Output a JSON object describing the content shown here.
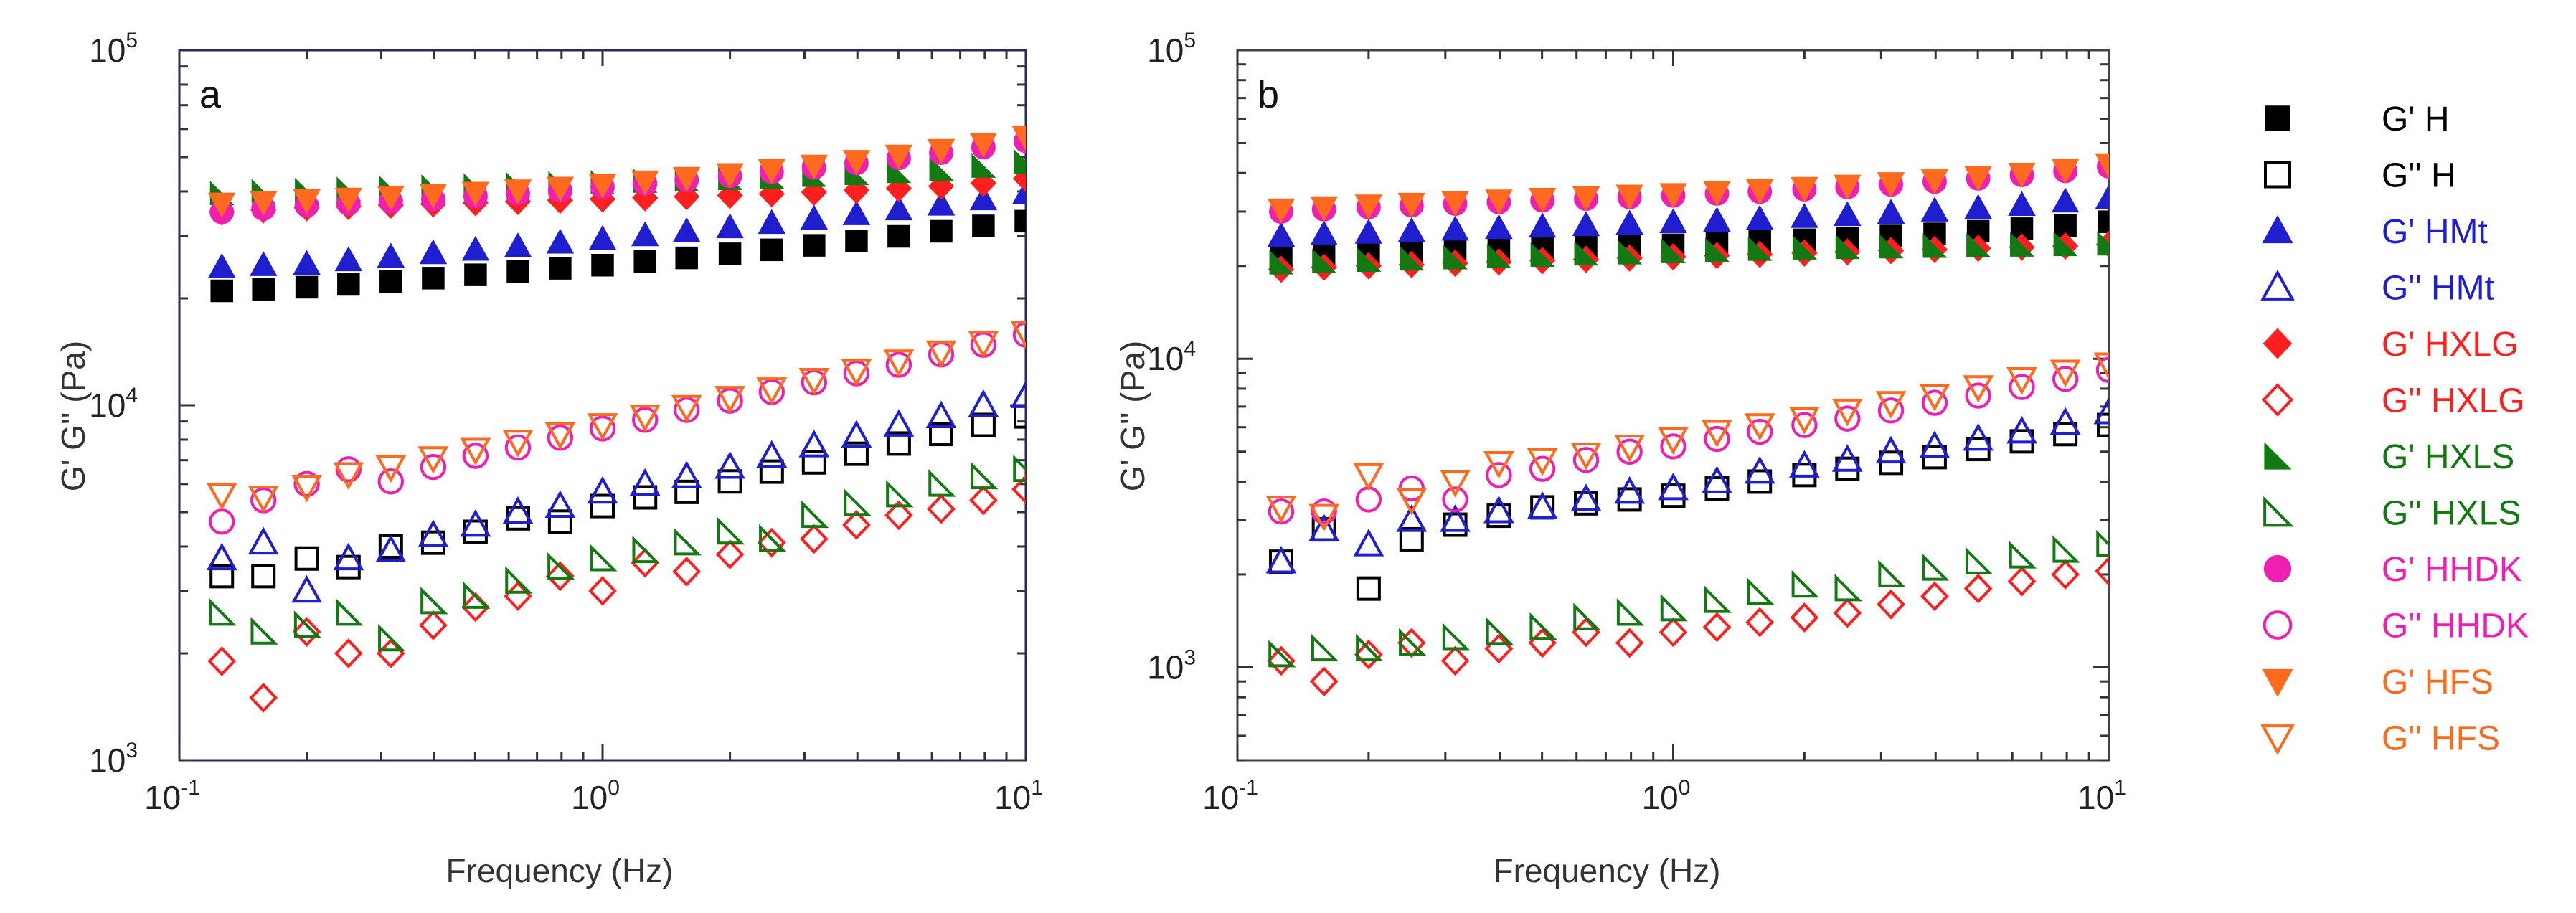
{
  "chart_data": [
    {
      "type": "scatter",
      "panel_label": "a",
      "xlabel": "Frequency (Hz)",
      "ylabel": "G' G'' (Pa)",
      "xscale": "log",
      "yscale": "log",
      "xlim": [
        0.1,
        10
      ],
      "ylim": [
        1000,
        100000
      ],
      "x_ticks": [
        {
          "value": 0.1,
          "base": "10",
          "exp": "-1"
        },
        {
          "value": 1,
          "base": "10",
          "exp": "0"
        },
        {
          "value": 10,
          "base": "10",
          "exp": "1"
        }
      ],
      "y_ticks": [
        {
          "value": 1000,
          "base": "10",
          "exp": "3"
        },
        {
          "value": 10000,
          "base": "10",
          "exp": "4"
        },
        {
          "value": 100000,
          "base": "10",
          "exp": "5"
        }
      ],
      "x": [
        0.126,
        0.158,
        0.2,
        0.251,
        0.316,
        0.398,
        0.501,
        0.631,
        0.794,
        1.0,
        1.26,
        1.58,
        2.0,
        2.51,
        3.16,
        3.98,
        5.01,
        6.31,
        7.94,
        10.0
      ],
      "series": [
        {
          "name": "G' H",
          "values": [
            21000,
            21200,
            21500,
            21900,
            22300,
            22800,
            23300,
            23800,
            24300,
            24800,
            25400,
            26000,
            26700,
            27400,
            28200,
            29000,
            29900,
            30900,
            32000,
            33000
          ]
        },
        {
          "name": "G'' H",
          "values": [
            3300,
            3300,
            3700,
            3500,
            4000,
            4100,
            4400,
            4800,
            4700,
            5200,
            5500,
            5700,
            6100,
            6500,
            6900,
            7300,
            7800,
            8300,
            8800,
            9300
          ]
        },
        {
          "name": "G' HMt",
          "values": [
            24500,
            24800,
            25000,
            25600,
            26200,
            26800,
            27400,
            28000,
            28700,
            29400,
            30100,
            30900,
            31700,
            32600,
            33500,
            34500,
            35600,
            36700,
            38000,
            39500
          ]
        },
        {
          "name": "G'' HMt",
          "values": [
            3700,
            4100,
            3000,
            3700,
            3900,
            4300,
            4600,
            5000,
            5200,
            5700,
            6000,
            6300,
            6700,
            7200,
            7700,
            8200,
            8800,
            9300,
            10000,
            10600
          ]
        },
        {
          "name": "G' HXLG",
          "values": [
            35000,
            35500,
            36000,
            36300,
            36600,
            36900,
            37200,
            37500,
            37800,
            38100,
            38400,
            38700,
            39000,
            39400,
            39800,
            40300,
            40800,
            41400,
            42200,
            43500
          ]
        },
        {
          "name": "G'' HXLG",
          "values": [
            1900,
            1500,
            2300,
            2000,
            2000,
            2400,
            2700,
            2900,
            3300,
            3000,
            3600,
            3400,
            3800,
            4100,
            4200,
            4600,
            4900,
            5100,
            5400,
            5800
          ]
        },
        {
          "name": "G' HXLS",
          "values": [
            39500,
            40000,
            40300,
            40600,
            40900,
            41200,
            41500,
            41800,
            42100,
            42400,
            42800,
            43200,
            43600,
            44000,
            44500,
            45000,
            45600,
            46300,
            47200,
            48500
          ]
        },
        {
          "name": "G'' HXLS",
          "values": [
            2600,
            2300,
            2400,
            2600,
            2200,
            2800,
            2900,
            3200,
            3500,
            3700,
            3900,
            4100,
            4400,
            4200,
            4900,
            5300,
            5600,
            6000,
            6300,
            6600
          ]
        },
        {
          "name": "G' HHDK",
          "values": [
            35000,
            35800,
            36500,
            37000,
            37500,
            38100,
            38800,
            39500,
            40300,
            41200,
            42100,
            43100,
            44200,
            45400,
            46700,
            48100,
            49700,
            51400,
            53300,
            55500
          ]
        },
        {
          "name": "G'' HHDK",
          "values": [
            4700,
            5400,
            6000,
            6600,
            6100,
            6700,
            7200,
            7600,
            8100,
            8600,
            9100,
            9700,
            10300,
            10900,
            11600,
            12300,
            13000,
            13900,
            14800,
            15800
          ]
        },
        {
          "name": "G' HFS",
          "values": [
            37000,
            37400,
            37800,
            38200,
            38700,
            39200,
            39700,
            40300,
            41000,
            41800,
            42700,
            43700,
            44800,
            46000,
            47300,
            48800,
            50500,
            52400,
            54600,
            57000
          ]
        },
        {
          "name": "G'' HFS",
          "values": [
            5600,
            5500,
            5900,
            6400,
            6700,
            7100,
            7500,
            7900,
            8300,
            8800,
            9300,
            9900,
            10500,
            11100,
            11800,
            12500,
            13300,
            14100,
            15000,
            16000
          ]
        }
      ]
    },
    {
      "type": "scatter",
      "panel_label": "b",
      "xlabel": "Frequency (Hz)",
      "ylabel": "G' G'' (Pa)",
      "xscale": "log",
      "yscale": "log",
      "xlim": [
        0.1,
        10
      ],
      "ylim": [
        500,
        100000
      ],
      "x_ticks": [
        {
          "value": 0.1,
          "base": "10",
          "exp": "-1"
        },
        {
          "value": 1,
          "base": "10",
          "exp": "0"
        },
        {
          "value": 10,
          "base": "10",
          "exp": "1"
        }
      ],
      "y_ticks": [
        {
          "value": 1000,
          "base": "10",
          "exp": "3"
        },
        {
          "value": 10000,
          "base": "10",
          "exp": "4"
        },
        {
          "value": 100000,
          "base": "10",
          "exp": "5"
        }
      ],
      "x": [
        0.126,
        0.158,
        0.2,
        0.251,
        0.316,
        0.398,
        0.501,
        0.631,
        0.794,
        1.0,
        1.26,
        1.58,
        2.0,
        2.51,
        3.16,
        3.98,
        5.01,
        6.31,
        7.94,
        10.0
      ],
      "series": [
        {
          "name": "G' H",
          "values": [
            21500,
            21800,
            22000,
            22200,
            22400,
            22600,
            22800,
            23000,
            23200,
            23400,
            23700,
            24000,
            24300,
            24600,
            25000,
            25400,
            25900,
            26400,
            27000,
            27800
          ]
        },
        {
          "name": "G'' H",
          "values": [
            2200,
            2800,
            1800,
            2600,
            2900,
            3100,
            3300,
            3400,
            3500,
            3600,
            3800,
            4000,
            4200,
            4400,
            4600,
            4800,
            5100,
            5400,
            5700,
            6100
          ]
        },
        {
          "name": "G' HMt",
          "values": [
            25000,
            25300,
            25600,
            25900,
            26200,
            26500,
            26800,
            27100,
            27400,
            27700,
            28000,
            28400,
            28800,
            29200,
            29700,
            30200,
            30800,
            31500,
            32300,
            33200
          ]
        },
        {
          "name": "G'' HMt",
          "values": [
            2200,
            2800,
            2500,
            3000,
            3000,
            3200,
            3300,
            3500,
            3700,
            3800,
            4000,
            4300,
            4500,
            4700,
            5000,
            5200,
            5500,
            5800,
            6200,
            6700
          ]
        },
        {
          "name": "G' HXLG",
          "values": [
            19500,
            19800,
            20000,
            20200,
            20400,
            20600,
            20800,
            21000,
            21200,
            21400,
            21600,
            21800,
            22000,
            22200,
            22400,
            22600,
            22800,
            23000,
            23200,
            23500
          ]
        },
        {
          "name": "G'' HXLG",
          "values": [
            1050,
            900,
            1100,
            1200,
            1050,
            1150,
            1200,
            1300,
            1200,
            1300,
            1350,
            1400,
            1450,
            1500,
            1600,
            1700,
            1800,
            1900,
            2000,
            2050
          ]
        },
        {
          "name": "G' HXLS",
          "values": [
            20500,
            20700,
            20900,
            21100,
            21300,
            21500,
            21700,
            21900,
            22100,
            22300,
            22500,
            22700,
            22900,
            23000,
            23100,
            23200,
            23300,
            23400,
            23500,
            23600
          ]
        },
        {
          "name": "G'' HXLS",
          "values": [
            1100,
            1150,
            1150,
            1200,
            1250,
            1300,
            1350,
            1450,
            1500,
            1550,
            1650,
            1750,
            1850,
            1800,
            2000,
            2100,
            2200,
            2300,
            2400,
            2500
          ]
        },
        {
          "name": "G' HHDK",
          "values": [
            30000,
            30500,
            31000,
            31400,
            31800,
            32200,
            32600,
            33000,
            33400,
            33800,
            34300,
            34800,
            35400,
            36000,
            36700,
            37500,
            38400,
            39400,
            40600,
            42000
          ]
        },
        {
          "name": "G'' HHDK",
          "values": [
            3200,
            3200,
            3500,
            3800,
            3500,
            4200,
            4400,
            4700,
            5000,
            5200,
            5500,
            5800,
            6100,
            6400,
            6800,
            7200,
            7600,
            8100,
            8600,
            9200
          ]
        },
        {
          "name": "G' HFS",
          "values": [
            30500,
            31000,
            31400,
            31800,
            32200,
            32600,
            33000,
            33400,
            33800,
            34200,
            34700,
            35200,
            35800,
            36400,
            37100,
            37900,
            38800,
            39800,
            41000,
            42500
          ]
        },
        {
          "name": "G'' HFS",
          "values": [
            3300,
            3100,
            4200,
            3500,
            4000,
            4600,
            4700,
            4900,
            5200,
            5500,
            5800,
            6100,
            6400,
            6800,
            7200,
            7600,
            8100,
            8600,
            9100,
            9600
          ]
        }
      ]
    }
  ],
  "legend": [
    {
      "label": "G' H",
      "marker": "square",
      "filled": true,
      "color": "#000000"
    },
    {
      "label": "G'' H",
      "marker": "square",
      "filled": false,
      "color": "#000000"
    },
    {
      "label": "G' HMt",
      "marker": "triangle-up",
      "filled": true,
      "color": "#1f1fd0"
    },
    {
      "label": "G'' HMt",
      "marker": "triangle-up",
      "filled": false,
      "color": "#1f1fd0"
    },
    {
      "label": "G' HXLG",
      "marker": "diamond",
      "filled": true,
      "color": "#ff1f1f"
    },
    {
      "label": "G'' HXLG",
      "marker": "diamond",
      "filled": false,
      "color": "#ff1f1f"
    },
    {
      "label": "G' HXLS",
      "marker": "triangle-right",
      "filled": true,
      "color": "#137a13"
    },
    {
      "label": "G'' HXLS",
      "marker": "triangle-right",
      "filled": false,
      "color": "#137a13"
    },
    {
      "label": "G' HHDK",
      "marker": "circle",
      "filled": true,
      "color": "#f01fb0"
    },
    {
      "label": "G'' HHDK",
      "marker": "circle",
      "filled": false,
      "color": "#f01fb0"
    },
    {
      "label": "G' HFS",
      "marker": "triangle-down",
      "filled": true,
      "color": "#ff6a1f"
    },
    {
      "label": "G'' HFS",
      "marker": "triangle-down",
      "filled": false,
      "color": "#ff6a1f"
    }
  ]
}
